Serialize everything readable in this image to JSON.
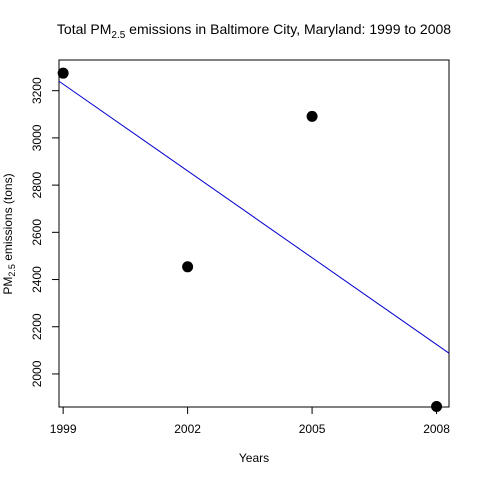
{
  "chart_data": {
    "type": "scatter",
    "title": {
      "prefix": "Total PM",
      "subscript": "2.5",
      "suffix": " emissions in Baltimore City, Maryland: 1999 to 2008"
    },
    "xlabel": "Years",
    "ylabel": {
      "prefix": "PM",
      "subscript": "2.5",
      "suffix": " emissions (tons)"
    },
    "x": [
      1999,
      2002,
      2005,
      2008
    ],
    "y": [
      3274.18,
      2453.92,
      3091.35,
      1862.28
    ],
    "xlim": [
      1998.9,
      2008.3
    ],
    "ylim": [
      1860,
      3330
    ],
    "xticks": [
      1999,
      2002,
      2005,
      2008
    ],
    "yticks": [
      2000,
      2200,
      2400,
      2600,
      2800,
      3000,
      3200
    ],
    "point_color": "#000000",
    "trend_line": {
      "color": "#0000cc",
      "start": [
        1998.9,
        3240
      ],
      "end": [
        2008.3,
        2088
      ]
    },
    "grid": false,
    "legend": "none"
  }
}
